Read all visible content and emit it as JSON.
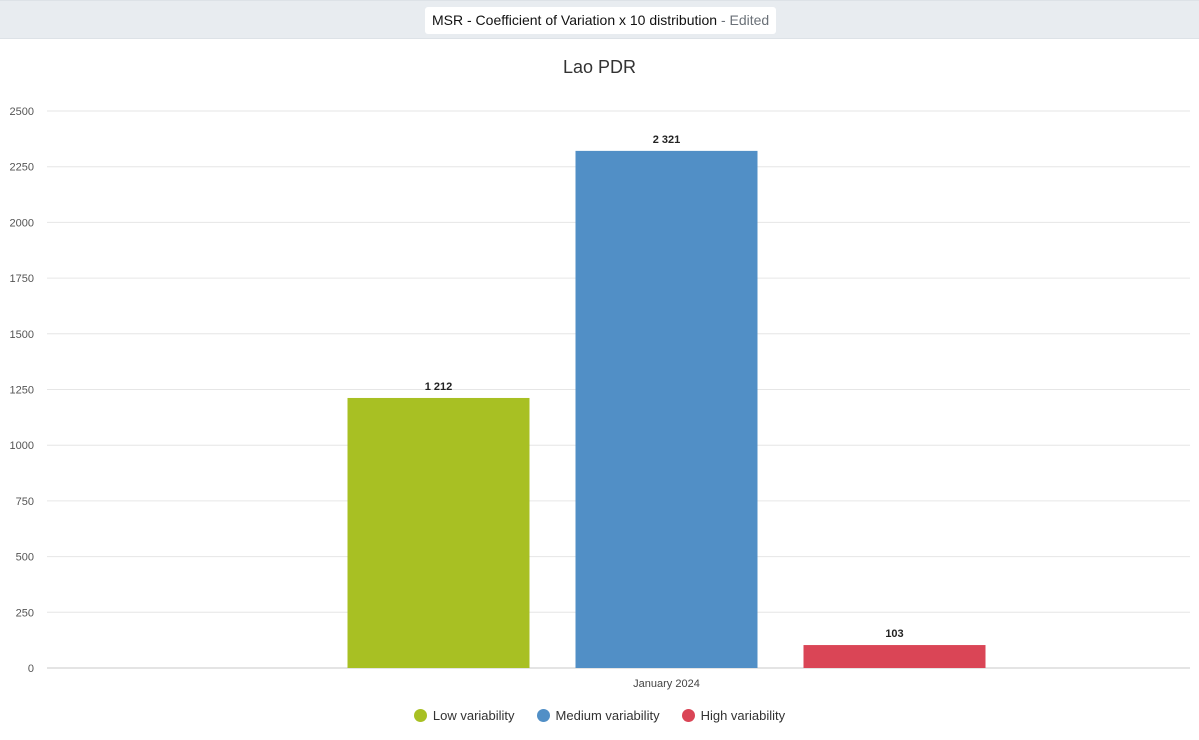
{
  "header": {
    "title": "MSR - Coefficient of Variation x 10 distribution",
    "separator": " - ",
    "status": "Edited"
  },
  "chart_data": {
    "type": "bar",
    "title": "Lao PDR",
    "categories": [
      "January 2024"
    ],
    "series": [
      {
        "name": "Low variability",
        "values": [
          1212
        ],
        "label": "1 212",
        "color": "#a8c023"
      },
      {
        "name": "Medium variability",
        "values": [
          2321
        ],
        "label": "2 321",
        "color": "#518fc6"
      },
      {
        "name": "High variability",
        "values": [
          103
        ],
        "label": "103",
        "color": "#da4556"
      }
    ],
    "yticks": [
      0,
      250,
      500,
      750,
      1000,
      1250,
      1500,
      1750,
      2000,
      2250,
      2500
    ],
    "ylim": [
      0,
      2500
    ],
    "grid": true,
    "legend": "bottom"
  }
}
